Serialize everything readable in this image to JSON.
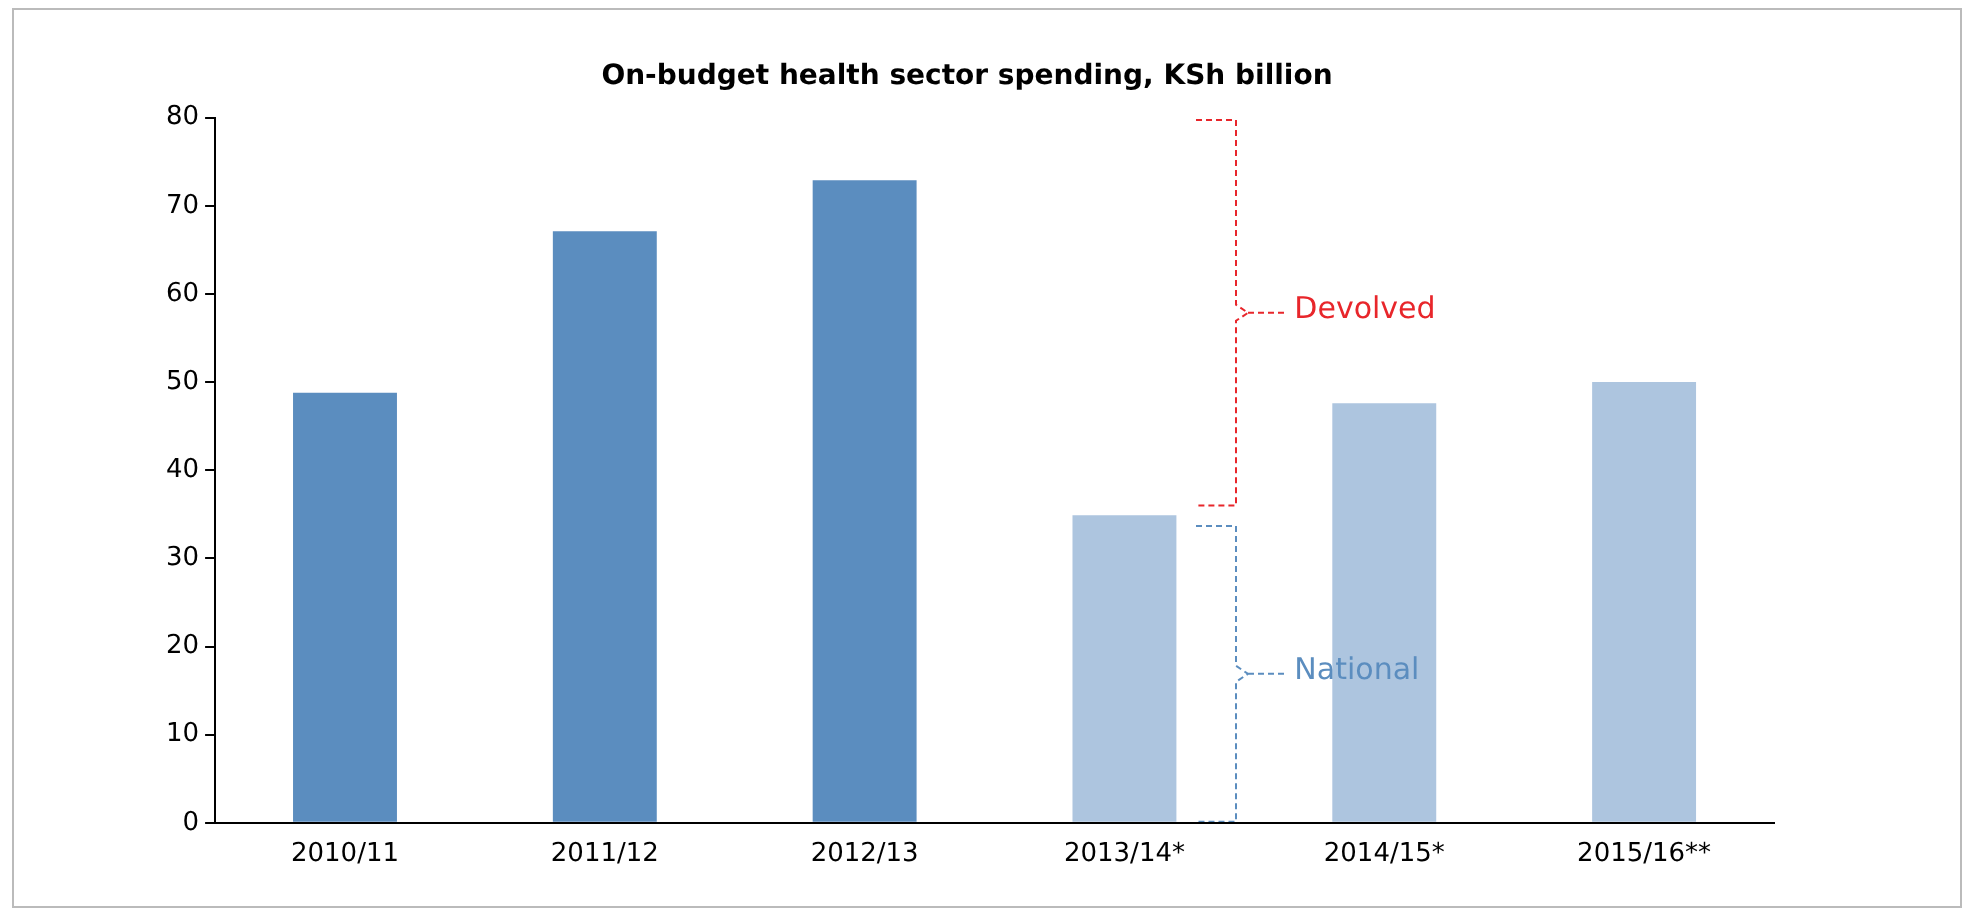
{
  "chart_data": {
    "type": "bar",
    "title": "On-budget health sector spending, KSh billion",
    "categories": [
      "2010/11",
      "2011/12",
      "2012/13",
      "2013/14*",
      "2014/15*",
      "2015/16**"
    ],
    "values": [
      48.8,
      67.1,
      72.9,
      34.9,
      47.6,
      50.0
    ],
    "colors": [
      "#5b8dbf",
      "#5b8dbf",
      "#5b8dbf",
      "#adc5df",
      "#adc5df",
      "#adc5df"
    ],
    "ylim": [
      0,
      80
    ],
    "yticks": [
      0,
      10,
      20,
      30,
      40,
      50,
      60,
      70,
      80
    ],
    "grid": false,
    "annotations": [
      "Devolved",
      "National"
    ]
  }
}
